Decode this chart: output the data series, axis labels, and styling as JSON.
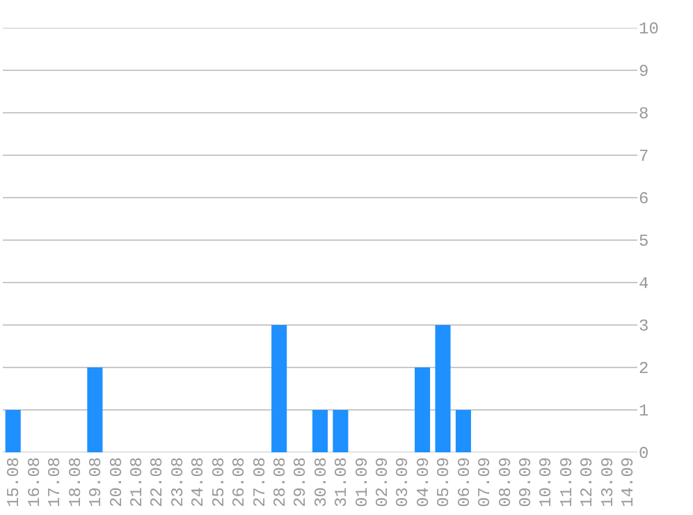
{
  "chart_data": {
    "type": "bar",
    "categories": [
      "15.08",
      "16.08",
      "17.08",
      "18.08",
      "19.08",
      "20.08",
      "21.08",
      "22.08",
      "23.08",
      "24.08",
      "25.08",
      "26.08",
      "27.08",
      "28.08",
      "29.08",
      "30.08",
      "31.08",
      "01.09",
      "02.09",
      "03.09",
      "04.09",
      "05.09",
      "06.09",
      "07.09",
      "08.09",
      "09.09",
      "10.09",
      "11.09",
      "12.09",
      "13.09",
      "14.09"
    ],
    "values": [
      1,
      0,
      0,
      0,
      2,
      0,
      0,
      0,
      0,
      0,
      0,
      0,
      0,
      3,
      0,
      1,
      1,
      0,
      0,
      0,
      2,
      3,
      1,
      0,
      0,
      0,
      0,
      0,
      0,
      0,
      0
    ],
    "color": "#1e90ff",
    "ylim": [
      0,
      10
    ],
    "yticks": [
      0,
      1,
      2,
      3,
      4,
      5,
      6,
      7,
      8,
      9,
      10
    ],
    "grid": "y"
  }
}
